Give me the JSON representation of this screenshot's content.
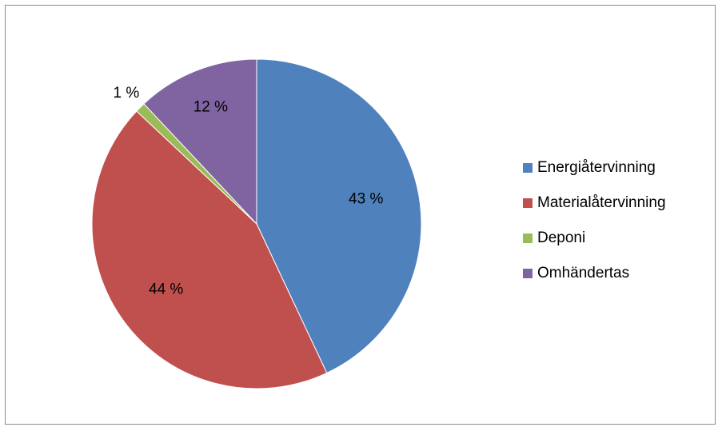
{
  "chart_data": {
    "type": "pie",
    "title": "",
    "slices": [
      {
        "name": "Energiåtervinning",
        "value": 43,
        "label": "43 %",
        "color": "#4f81bd"
      },
      {
        "name": "Materialåtervinning",
        "value": 44,
        "label": "44 %",
        "color": "#c0504d"
      },
      {
        "name": "Deponi",
        "value": 1,
        "label": "1 %",
        "color": "#9bbb59"
      },
      {
        "name": "Omhändertas",
        "value": 12,
        "label": "12 %",
        "color": "#8064a2"
      }
    ],
    "legend_position": "right"
  }
}
